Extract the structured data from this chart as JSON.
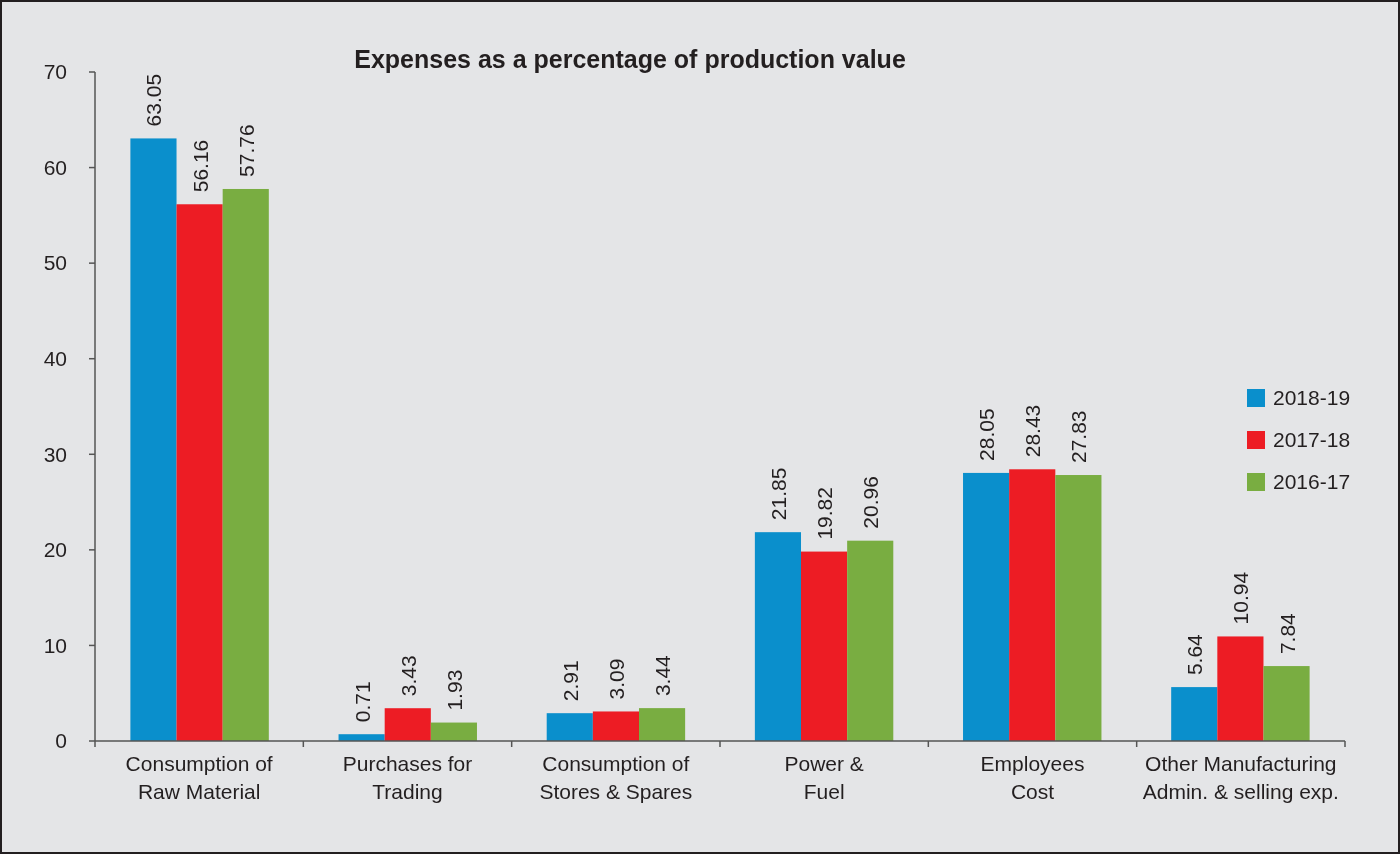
{
  "chart_data": {
    "type": "bar",
    "title": "Expenses as a percentage of production value",
    "categories": [
      "Consumption of\nRaw Material",
      "Purchases for\nTrading",
      "Consumption of\nStores & Spares",
      "Power &\nFuel",
      "Employees\nCost",
      "Other Manufacturing\nAdmin. & selling exp."
    ],
    "series": [
      {
        "name": "2018-19",
        "color": "#0a8fcc",
        "values": [
          63.05,
          0.71,
          2.91,
          21.85,
          28.05,
          5.64
        ]
      },
      {
        "name": "2017-18",
        "color": "#ed1c24",
        "values": [
          56.16,
          3.43,
          3.09,
          19.82,
          28.43,
          10.94
        ]
      },
      {
        "name": "2016-17",
        "color": "#79ad41",
        "values": [
          57.76,
          1.93,
          3.44,
          20.96,
          27.83,
          7.84
        ]
      }
    ],
    "ylim": [
      0,
      70
    ],
    "yticks": [
      0,
      10,
      20,
      30,
      40,
      50,
      60,
      70
    ],
    "data_labels": true,
    "legend": "right",
    "grid": false
  }
}
